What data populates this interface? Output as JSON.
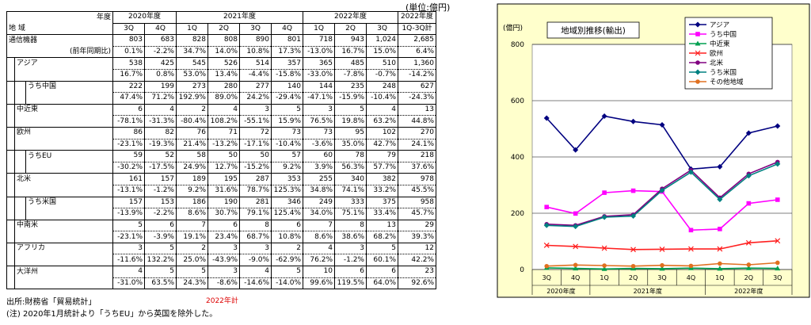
{
  "unit_label": "(単位:億円)",
  "table": {
    "header": {
      "corner_top": "年度",
      "corner_bottom": "地 域",
      "years": [
        {
          "label": "2020年度",
          "span": 2
        },
        {
          "label": "2021年度",
          "span": 4
        },
        {
          "label": "2022年度",
          "span": 3
        },
        {
          "label": "2022年度",
          "span": 1
        }
      ],
      "quarters": [
        "3Q",
        "4Q",
        "1Q",
        "2Q",
        "3Q",
        "4Q",
        "1Q",
        "2Q",
        "3Q",
        "1Q-3Q計"
      ]
    },
    "rows": [
      {
        "label": "通信機器",
        "sub": "(前年同期比)",
        "level": 0,
        "v": [
          "803",
          "683",
          "828",
          "808",
          "890",
          "801",
          "718",
          "943",
          "1,024",
          "2,685"
        ],
        "p": [
          "0.1%",
          "-2.2%",
          "34.7%",
          "14.0%",
          "10.8%",
          "17.3%",
          "-13.0%",
          "16.7%",
          "15.0%",
          "6.4%"
        ]
      },
      {
        "label": "アジア",
        "level": 1,
        "v": [
          "538",
          "425",
          "545",
          "526",
          "514",
          "357",
          "365",
          "485",
          "510",
          "1,360"
        ],
        "p": [
          "16.7%",
          "0.8%",
          "53.0%",
          "13.4%",
          "-4.4%",
          "-15.8%",
          "-33.0%",
          "-7.8%",
          "-0.7%",
          "-14.2%"
        ]
      },
      {
        "label": "うち中国",
        "level": 2,
        "v": [
          "222",
          "199",
          "273",
          "280",
          "277",
          "140",
          "144",
          "235",
          "248",
          "627"
        ],
        "p": [
          "47.4%",
          "71.2%",
          "192.9%",
          "89.0%",
          "24.2%",
          "-29.4%",
          "-47.1%",
          "-15.9%",
          "-10.4%",
          "-24.3%"
        ]
      },
      {
        "label": "中近東",
        "level": 1,
        "v": [
          "6",
          "4",
          "2",
          "4",
          "3",
          "5",
          "3",
          "5",
          "4",
          "13"
        ],
        "p": [
          "-78.1%",
          "-31.3%",
          "-80.4%",
          "108.2%",
          "-55.1%",
          "15.9%",
          "76.5%",
          "19.8%",
          "63.2%",
          "44.8%"
        ]
      },
      {
        "label": "欧州",
        "level": 1,
        "v": [
          "86",
          "82",
          "76",
          "71",
          "72",
          "73",
          "73",
          "95",
          "102",
          "270"
        ],
        "p": [
          "-23.1%",
          "-19.3%",
          "21.4%",
          "-13.2%",
          "-17.1%",
          "-10.4%",
          "-3.6%",
          "35.0%",
          "42.7%",
          "24.1%"
        ]
      },
      {
        "label": "うちEU",
        "level": 2,
        "v": [
          "59",
          "52",
          "58",
          "50",
          "50",
          "57",
          "60",
          "78",
          "79",
          "218"
        ],
        "p": [
          "-30.2%",
          "-17.5%",
          "24.9%",
          "12.7%",
          "-15.2%",
          "9.2%",
          "3.9%",
          "56.3%",
          "57.7%",
          "37.6%"
        ]
      },
      {
        "label": "北米",
        "level": 1,
        "v": [
          "161",
          "157",
          "189",
          "195",
          "287",
          "353",
          "255",
          "340",
          "382",
          "978"
        ],
        "p": [
          "-13.1%",
          "-1.2%",
          "9.2%",
          "31.6%",
          "78.7%",
          "125.3%",
          "34.8%",
          "74.1%",
          "33.2%",
          "45.5%"
        ]
      },
      {
        "label": "うち米国",
        "level": 2,
        "v": [
          "157",
          "153",
          "186",
          "190",
          "281",
          "346",
          "249",
          "333",
          "375",
          "958"
        ],
        "p": [
          "-13.9%",
          "-2.2%",
          "8.6%",
          "30.7%",
          "79.1%",
          "125.4%",
          "34.0%",
          "75.1%",
          "33.4%",
          "45.7%"
        ]
      },
      {
        "label": "中南米",
        "level": 1,
        "v": [
          "5",
          "6",
          "7",
          "6",
          "8",
          "6",
          "7",
          "8",
          "13",
          "29"
        ],
        "p": [
          "-23.1%",
          "-3.9%",
          "19.1%",
          "23.4%",
          "68.7%",
          "10.8%",
          "8.6%",
          "38.6%",
          "68.2%",
          "39.3%"
        ]
      },
      {
        "label": "アフリカ",
        "level": 1,
        "v": [
          "3",
          "5",
          "2",
          "3",
          "3",
          "2",
          "4",
          "3",
          "5",
          "12"
        ],
        "p": [
          "-11.6%",
          "132.2%",
          "25.0%",
          "-43.9%",
          "-9.0%",
          "-62.9%",
          "76.2%",
          "-1.2%",
          "60.1%",
          "42.2%"
        ]
      },
      {
        "label": "大洋州",
        "level": 1,
        "v": [
          "4",
          "5",
          "5",
          "3",
          "4",
          "5",
          "10",
          "6",
          "6",
          "23"
        ],
        "p": [
          "-31.0%",
          "63.5%",
          "24.3%",
          "-8.6%",
          "-14.6%",
          "-14.0%",
          "99.6%",
          "119.5%",
          "64.0%",
          "92.6%"
        ]
      }
    ]
  },
  "source": "出所:財務省「貿易統計」",
  "total_note": "2022年計",
  "note": "(注) 2020年1月統計より「うちEU」から英国を除外した。",
  "chart_data": {
    "type": "line",
    "title": "地域別推移(輸出)",
    "ylabel": "(億円)",
    "ylim": [
      0,
      800
    ],
    "yticks": [
      0,
      200,
      400,
      600,
      800
    ],
    "grid": true,
    "legend_position": "top-right",
    "categories": [
      "3Q",
      "4Q",
      "1Q",
      "2Q",
      "3Q",
      "4Q",
      "1Q",
      "2Q",
      "3Q"
    ],
    "year_groups": [
      {
        "label": "2020年度",
        "count": 2
      },
      {
        "label": "2021年度",
        "count": 4
      },
      {
        "label": "2022年度",
        "count": 3
      }
    ],
    "series": [
      {
        "name": "アジア",
        "color": "#000080",
        "marker": "diamond",
        "values": [
          538,
          425,
          545,
          526,
          514,
          357,
          365,
          485,
          510
        ]
      },
      {
        "name": "うち中国",
        "color": "#ff00ff",
        "marker": "square",
        "values": [
          222,
          199,
          273,
          280,
          277,
          140,
          144,
          235,
          248
        ]
      },
      {
        "name": "中近東",
        "color": "#00a050",
        "marker": "triangle",
        "values": [
          6,
          4,
          2,
          4,
          3,
          5,
          3,
          5,
          4
        ]
      },
      {
        "name": "欧州",
        "color": "#ff2020",
        "marker": "x",
        "values": [
          86,
          82,
          76,
          71,
          72,
          73,
          73,
          95,
          102
        ]
      },
      {
        "name": "北米",
        "color": "#800080",
        "marker": "circle",
        "values": [
          161,
          157,
          189,
          195,
          287,
          353,
          255,
          340,
          382
        ]
      },
      {
        "name": "うち米国",
        "color": "#008080",
        "marker": "diamond",
        "values": [
          157,
          153,
          186,
          190,
          281,
          346,
          249,
          333,
          375
        ]
      },
      {
        "name": "その他地域",
        "color": "#e07020",
        "marker": "circle",
        "values": [
          12,
          16,
          14,
          12,
          15,
          13,
          21,
          17,
          24
        ]
      }
    ]
  }
}
